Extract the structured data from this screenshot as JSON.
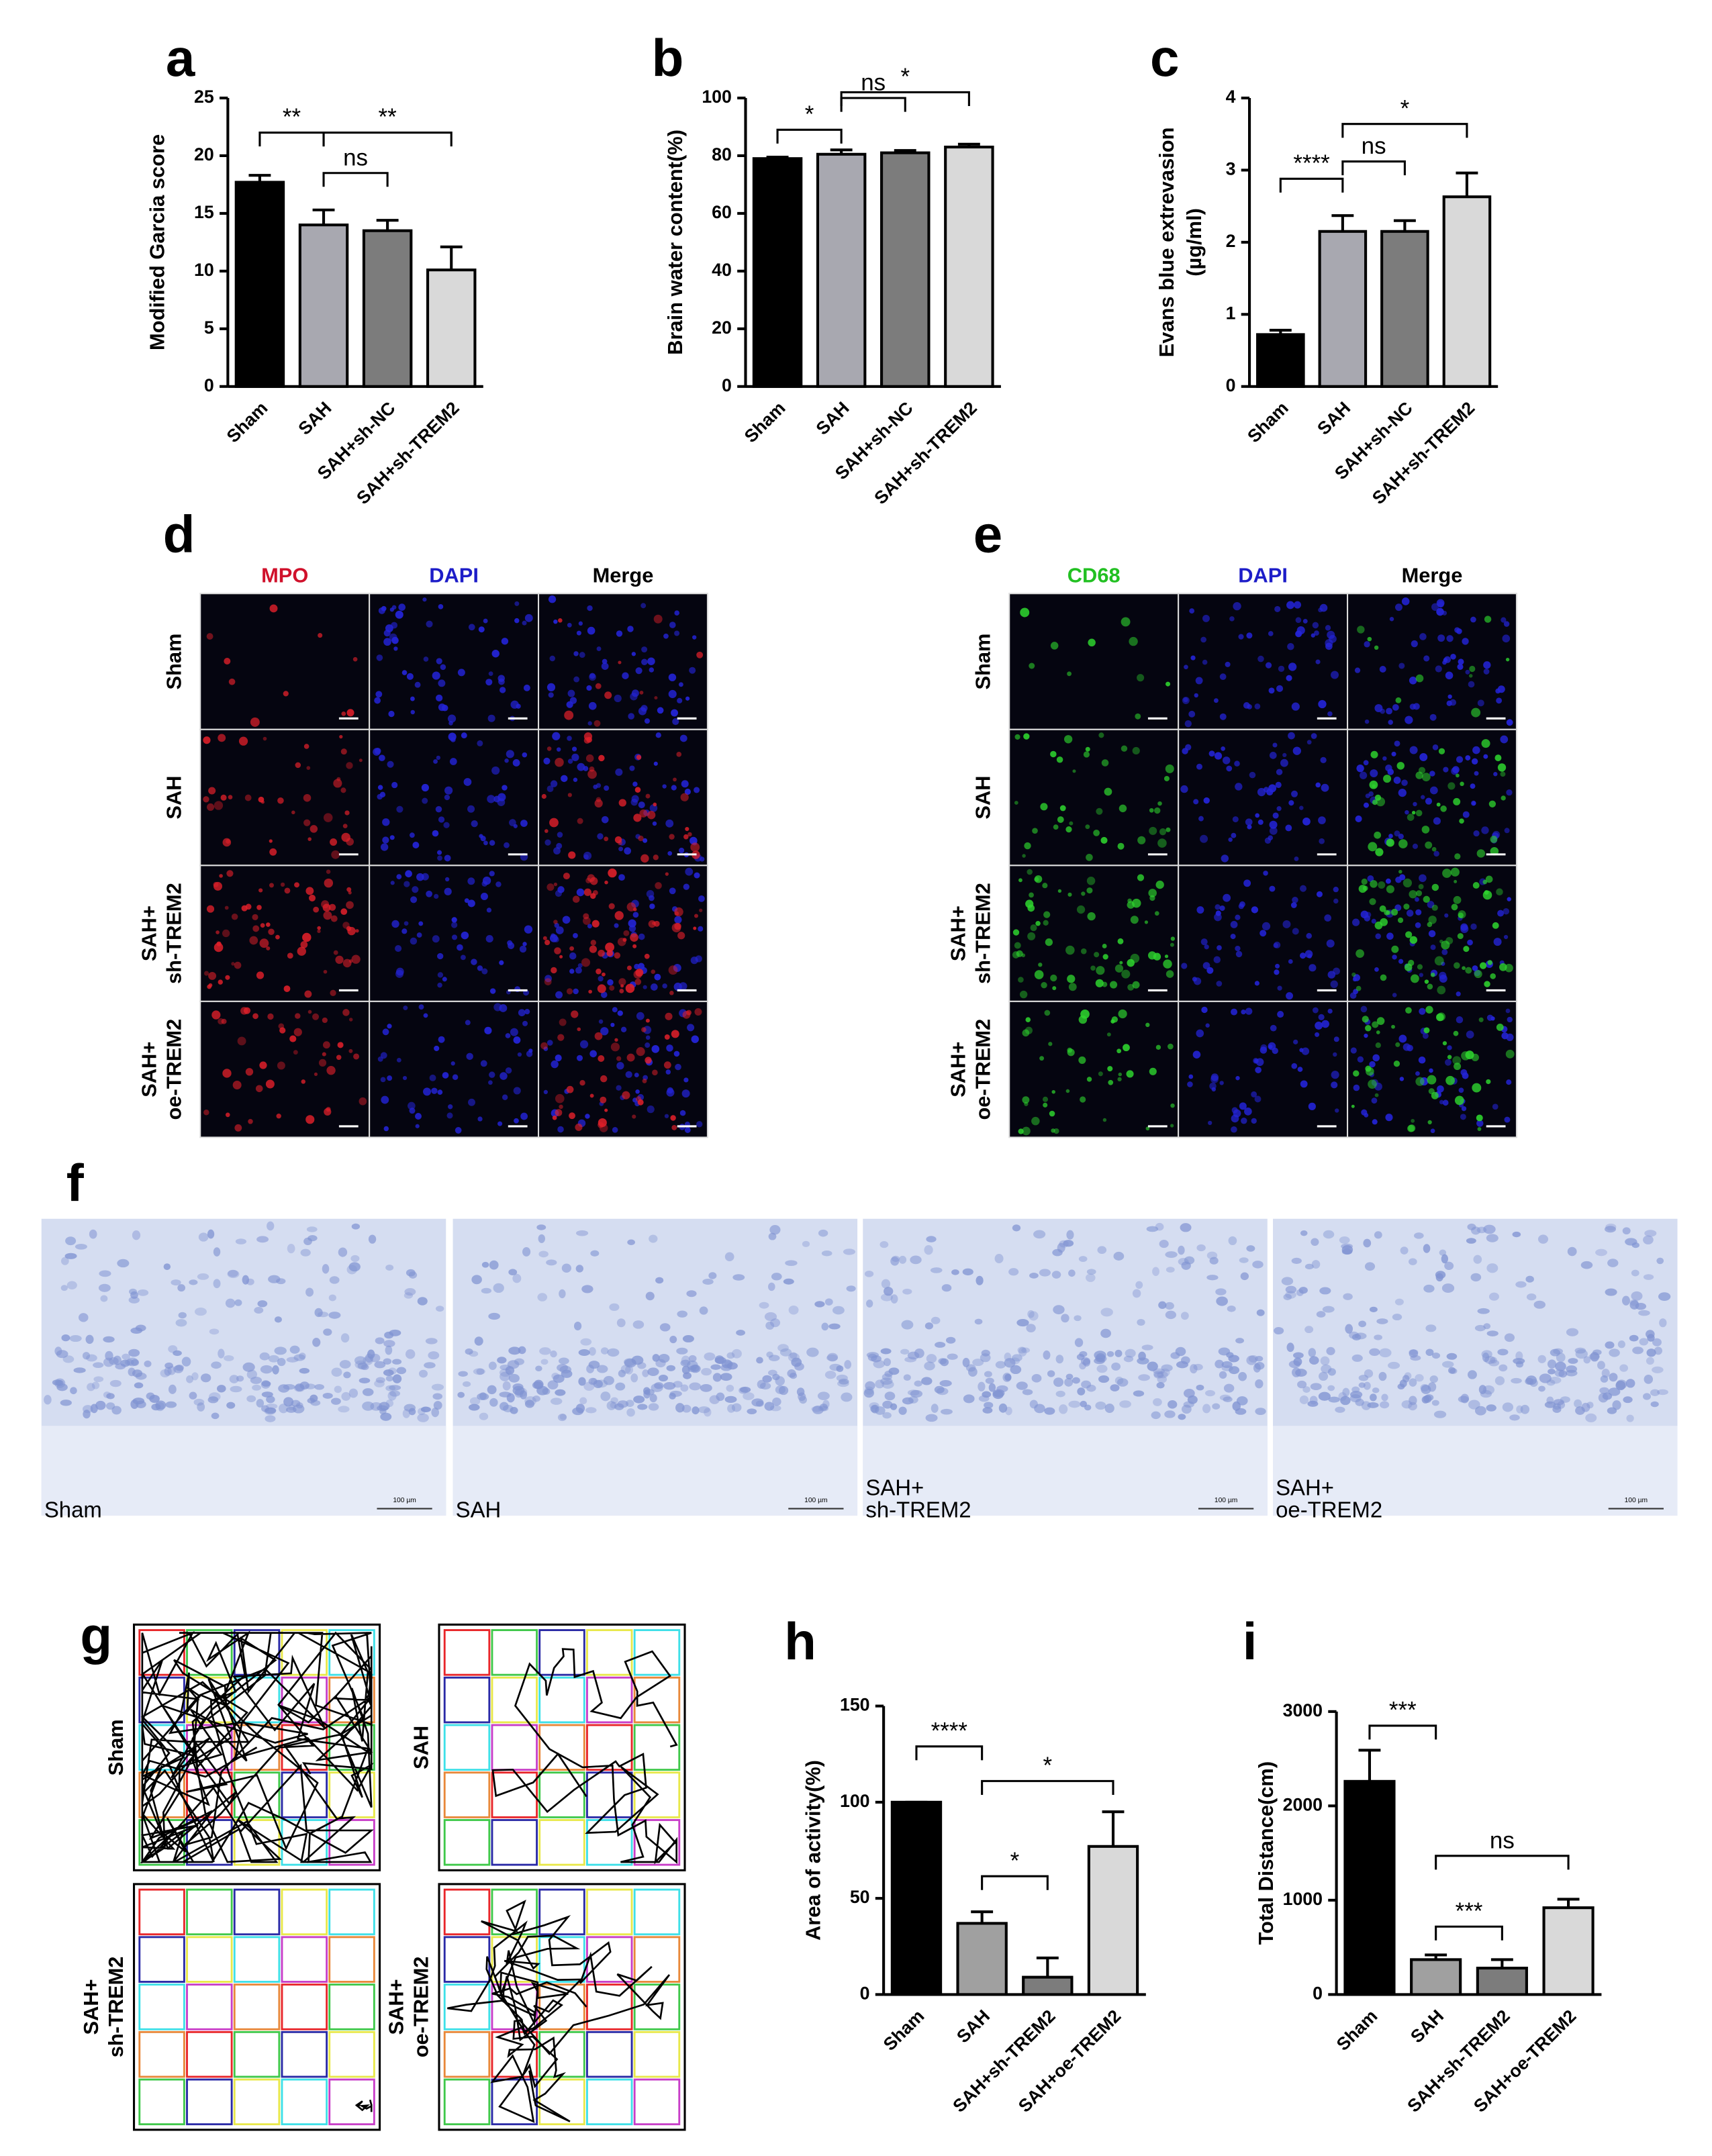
{
  "chart_data": [
    {
      "type": "bar",
      "label": "a",
      "ylabel": [
        "Modified Garcia score"
      ],
      "categories": [
        "Sham",
        "SAH",
        "SAH+sh-NC",
        "SAH+sh-TREM2"
      ],
      "values": [
        17.7,
        14,
        13.5,
        10.1
      ],
      "errors": [
        0.6,
        1.3,
        0.9,
        2.0
      ],
      "colors": [
        "#000000",
        "#a8a8b0",
        "#7c7c7c",
        "#d9d9d9"
      ],
      "annotations": [
        "**",
        "ns",
        "**"
      ],
      "ylim": [
        0,
        25
      ],
      "yticks": [
        0,
        5,
        10,
        15,
        20,
        25
      ]
    },
    {
      "type": "bar",
      "label": "b",
      "ylabel": [
        "Brain water content(%)"
      ],
      "categories": [
        "Sham",
        "SAH",
        "SAH+sh-NC",
        "SAH+sh-TREM2"
      ],
      "values": [
        79,
        80.5,
        81,
        83
      ],
      "errors": [
        0.5,
        1.5,
        0.8,
        1.0
      ],
      "colors": [
        "#000000",
        "#a8a8b0",
        "#7c7c7c",
        "#d9d9d9"
      ],
      "annotations": [
        "*",
        "ns",
        "*"
      ],
      "ylim": [
        0,
        100
      ],
      "yticks": [
        0,
        20,
        40,
        60,
        80,
        100
      ]
    },
    {
      "type": "bar",
      "label": "c",
      "ylabel": [
        "Evans blue extrevasion",
        "(µg/ml)"
      ],
      "categories": [
        "Sham",
        "SAH",
        "SAH+sh-NC",
        "SAH+sh-TREM2"
      ],
      "values": [
        0.72,
        2.15,
        2.15,
        2.63
      ],
      "errors": [
        0.06,
        0.22,
        0.15,
        0.33
      ],
      "colors": [
        "#000000",
        "#a8a8b0",
        "#7c7c7c",
        "#d9d9d9"
      ],
      "annotations": [
        "****",
        "ns",
        "*"
      ],
      "ylim": [
        0,
        4
      ],
      "yticks": [
        0,
        1,
        2,
        3,
        4
      ]
    },
    {
      "type": "bar",
      "label": "h",
      "ylabel": [
        "Area of activity(%)"
      ],
      "categories": [
        "Sham",
        "SAH",
        "SAH+sh-TREM2",
        "SAH+oe-TREM2"
      ],
      "values": [
        100,
        37,
        9,
        77
      ],
      "errors": [
        0,
        6,
        10,
        18
      ],
      "colors": [
        "#000000",
        "#a0a0a0",
        "#7c7c7c",
        "#d9d9d9"
      ],
      "annotations": [
        "****",
        "*",
        "*"
      ],
      "ylim": [
        0,
        150
      ],
      "yticks": [
        0,
        50,
        100,
        150
      ]
    },
    {
      "type": "bar",
      "label": "i",
      "ylabel": [
        "Total Distance(cm)"
      ],
      "categories": [
        "Sham",
        "SAH",
        "SAH+sh-TREM2",
        "SAH+oe-TREM2"
      ],
      "values": [
        2260,
        370,
        280,
        920
      ],
      "errors": [
        330,
        50,
        90,
        90
      ],
      "colors": [
        "#000000",
        "#a0a0a0",
        "#7c7c7c",
        "#d9d9d9"
      ],
      "annotations": [
        "***",
        "ns",
        "***"
      ],
      "ylim": [
        0,
        3000
      ],
      "yticks": [
        0,
        1000,
        2000,
        3000
      ]
    }
  ],
  "panels": {
    "d": {
      "label": "d",
      "columns": [
        "MPO",
        "DAPI",
        "Merge"
      ],
      "column_colors": [
        "#d0112b",
        "#1d1dc8",
        "#000000"
      ],
      "rows": [
        [
          "Sham"
        ],
        [
          "SAH"
        ],
        [
          "SAH+",
          "sh-TREM2"
        ],
        [
          "SAH+",
          "oe-TREM2"
        ]
      ]
    },
    "e": {
      "label": "e",
      "columns": [
        "CD68",
        "DAPI",
        "Merge"
      ],
      "column_colors": [
        "#22c022",
        "#1d1dc8",
        "#000000"
      ],
      "rows": [
        [
          "Sham"
        ],
        [
          "SAH"
        ],
        [
          "SAH+",
          "sh-TREM2"
        ],
        [
          "SAH+",
          "oe-TREM2"
        ]
      ]
    },
    "f": {
      "label": "f",
      "images": [
        [
          "Sham"
        ],
        [
          "SAH"
        ],
        [
          "SAH+",
          "sh-TREM2"
        ],
        [
          "SAH+",
          "oe-TREM2"
        ]
      ],
      "scale_bar": "100 µm"
    },
    "g": {
      "label": "g",
      "rows": [
        [
          "Sham"
        ],
        [
          "SAH"
        ],
        [
          "SAH+",
          "sh-TREM2"
        ],
        [
          "SAH+",
          "oe-TREM2"
        ]
      ]
    }
  }
}
